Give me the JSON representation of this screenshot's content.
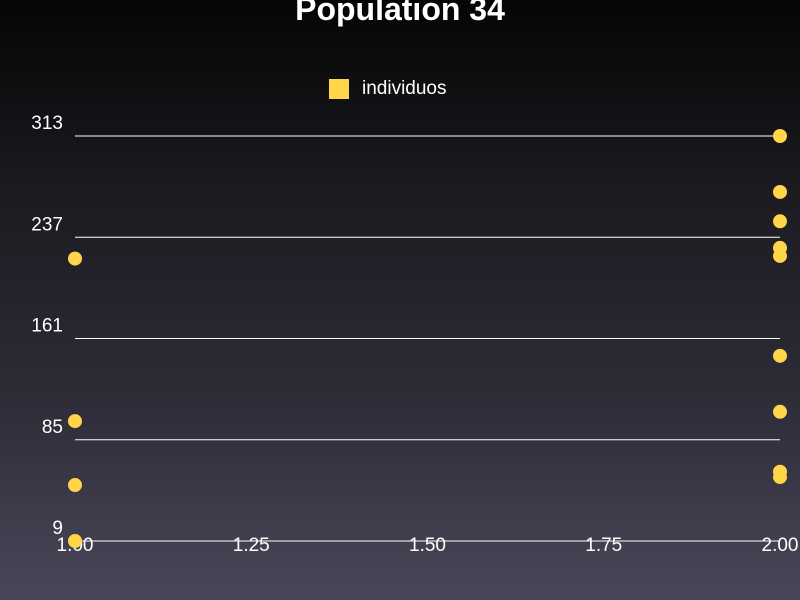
{
  "chart_data": {
    "type": "scatter",
    "title": "Population 34",
    "xlabel": "",
    "ylabel": "",
    "xlim": [
      1.0,
      2.0
    ],
    "ylim": [
      9,
      313
    ],
    "x_ticks": [
      "1.00",
      "1.25",
      "1.50",
      "1.75",
      "2.00"
    ],
    "y_ticks": [
      "9",
      "85",
      "161",
      "237",
      "313"
    ],
    "grid": "horizontal",
    "legend_position": "top-center",
    "series": [
      {
        "name": "individuos",
        "color": "#ffd54a",
        "points": [
          {
            "x": 1.0,
            "y": 221
          },
          {
            "x": 1.0,
            "y": 99
          },
          {
            "x": 1.0,
            "y": 51
          },
          {
            "x": 1.0,
            "y": 9
          },
          {
            "x": 2.0,
            "y": 313
          },
          {
            "x": 2.0,
            "y": 271
          },
          {
            "x": 2.0,
            "y": 249
          },
          {
            "x": 2.0,
            "y": 229
          },
          {
            "x": 2.0,
            "y": 223
          },
          {
            "x": 2.0,
            "y": 148
          },
          {
            "x": 2.0,
            "y": 106
          },
          {
            "x": 2.0,
            "y": 61
          },
          {
            "x": 2.0,
            "y": 57
          }
        ]
      }
    ]
  }
}
